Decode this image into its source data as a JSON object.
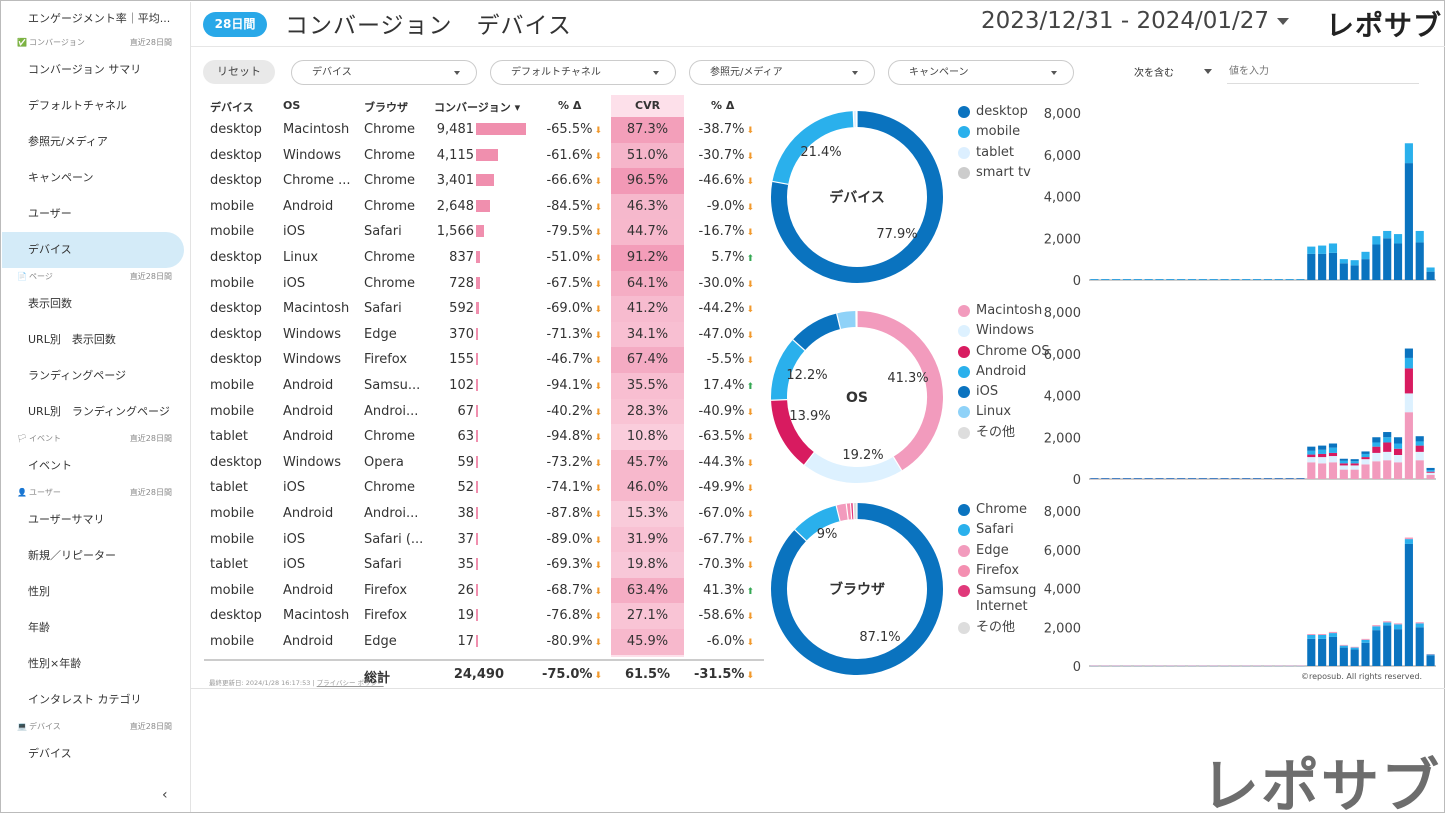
{
  "sidebar": {
    "top_item": "エンゲージメント率｜平均...",
    "sections": [
      {
        "label": "コンバージョン",
        "range": "直近28日間",
        "items": [
          "コンバージョン サマリ",
          "デフォルトチャネル",
          "参照元/メディア",
          "キャンペーン",
          "ユーザー",
          "デバイス"
        ]
      },
      {
        "label": "ページ",
        "range": "直近28日間",
        "items": [
          "表示回数",
          "URL別　表示回数",
          "ランディングページ",
          "URL別　ランディングページ"
        ]
      },
      {
        "label": "イベント",
        "range": "直近28日間",
        "items": [
          "イベント"
        ]
      },
      {
        "label": "ユーザー",
        "range": "直近28日間",
        "items": [
          "ユーザーサマリ",
          "新規／リピーター",
          "性別",
          "年齢",
          "性別×年齢",
          "インタレスト カテゴリ"
        ]
      },
      {
        "label": "デバイス",
        "range": "直近28日間",
        "items": [
          "デバイス"
        ]
      }
    ],
    "active": "デバイス",
    "collapse": "‹"
  },
  "header": {
    "period": "28日間",
    "title": "コンバージョン　デバイス",
    "date_range": "2023/12/31 - 2024/01/27",
    "logo": "レポサブ"
  },
  "filters": {
    "reset": "リセット",
    "dropdowns": [
      "デバイス",
      "デフォルトチャネル",
      "参照元/メディア",
      "キャンペーン"
    ],
    "match_mode": "次を含む",
    "value_placeholder": "値を入力"
  },
  "table": {
    "headers": {
      "device": "デバイス",
      "os": "OS",
      "browser": "ブラウザ",
      "conv": "コンバージョン ▾",
      "conv_delta": "% Δ",
      "cvr": "CVR",
      "cvr_delta": "% Δ"
    },
    "rows": [
      {
        "device": "desktop",
        "os": "Macintosh",
        "browser": "Chrome",
        "conv": "9,481",
        "conv_value": 9481,
        "delta": "-65.5%",
        "delta_dir": "down",
        "cvr": "87.3%",
        "cvr_value": 87.3,
        "cvr_delta": "-38.7%",
        "cvr_dir": "down"
      },
      {
        "device": "desktop",
        "os": "Windows",
        "browser": "Chrome",
        "conv": "4,115",
        "conv_value": 4115,
        "delta": "-61.6%",
        "delta_dir": "down",
        "cvr": "51.0%",
        "cvr_value": 51.0,
        "cvr_delta": "-30.7%",
        "cvr_dir": "down"
      },
      {
        "device": "desktop",
        "os": "Chrome ...",
        "browser": "Chrome",
        "conv": "3,401",
        "conv_value": 3401,
        "delta": "-66.6%",
        "delta_dir": "down",
        "cvr": "96.5%",
        "cvr_value": 96.5,
        "cvr_delta": "-46.6%",
        "cvr_dir": "down"
      },
      {
        "device": "mobile",
        "os": "Android",
        "browser": "Chrome",
        "conv": "2,648",
        "conv_value": 2648,
        "delta": "-84.5%",
        "delta_dir": "down",
        "cvr": "46.3%",
        "cvr_value": 46.3,
        "cvr_delta": "-9.0%",
        "cvr_dir": "down"
      },
      {
        "device": "mobile",
        "os": "iOS",
        "browser": "Safari",
        "conv": "1,566",
        "conv_value": 1566,
        "delta": "-79.5%",
        "delta_dir": "down",
        "cvr": "44.7%",
        "cvr_value": 44.7,
        "cvr_delta": "-16.7%",
        "cvr_dir": "down"
      },
      {
        "device": "desktop",
        "os": "Linux",
        "browser": "Chrome",
        "conv": "837",
        "conv_value": 837,
        "delta": "-51.0%",
        "delta_dir": "down",
        "cvr": "91.2%",
        "cvr_value": 91.2,
        "cvr_delta": "5.7%",
        "cvr_dir": "up"
      },
      {
        "device": "mobile",
        "os": "iOS",
        "browser": "Chrome",
        "conv": "728",
        "conv_value": 728,
        "delta": "-67.5%",
        "delta_dir": "down",
        "cvr": "64.1%",
        "cvr_value": 64.1,
        "cvr_delta": "-30.0%",
        "cvr_dir": "down"
      },
      {
        "device": "desktop",
        "os": "Macintosh",
        "browser": "Safari",
        "conv": "592",
        "conv_value": 592,
        "delta": "-69.0%",
        "delta_dir": "down",
        "cvr": "41.2%",
        "cvr_value": 41.2,
        "cvr_delta": "-44.2%",
        "cvr_dir": "down"
      },
      {
        "device": "desktop",
        "os": "Windows",
        "browser": "Edge",
        "conv": "370",
        "conv_value": 370,
        "delta": "-71.3%",
        "delta_dir": "down",
        "cvr": "34.1%",
        "cvr_value": 34.1,
        "cvr_delta": "-47.0%",
        "cvr_dir": "down"
      },
      {
        "device": "desktop",
        "os": "Windows",
        "browser": "Firefox",
        "conv": "155",
        "conv_value": 155,
        "delta": "-46.7%",
        "delta_dir": "down",
        "cvr": "67.4%",
        "cvr_value": 67.4,
        "cvr_delta": "-5.5%",
        "cvr_dir": "down"
      },
      {
        "device": "mobile",
        "os": "Android",
        "browser": "Samsu...",
        "conv": "102",
        "conv_value": 102,
        "delta": "-94.1%",
        "delta_dir": "down",
        "cvr": "35.5%",
        "cvr_value": 35.5,
        "cvr_delta": "17.4%",
        "cvr_dir": "up"
      },
      {
        "device": "mobile",
        "os": "Android",
        "browser": "Androi...",
        "conv": "67",
        "conv_value": 67,
        "delta": "-40.2%",
        "delta_dir": "down",
        "cvr": "28.3%",
        "cvr_value": 28.3,
        "cvr_delta": "-40.9%",
        "cvr_dir": "down"
      },
      {
        "device": "tablet",
        "os": "Android",
        "browser": "Chrome",
        "conv": "63",
        "conv_value": 63,
        "delta": "-94.8%",
        "delta_dir": "down",
        "cvr": "10.8%",
        "cvr_value": 10.8,
        "cvr_delta": "-63.5%",
        "cvr_dir": "down"
      },
      {
        "device": "desktop",
        "os": "Windows",
        "browser": "Opera",
        "conv": "59",
        "conv_value": 59,
        "delta": "-73.2%",
        "delta_dir": "down",
        "cvr": "45.7%",
        "cvr_value": 45.7,
        "cvr_delta": "-44.3%",
        "cvr_dir": "down"
      },
      {
        "device": "tablet",
        "os": "iOS",
        "browser": "Chrome",
        "conv": "52",
        "conv_value": 52,
        "delta": "-74.1%",
        "delta_dir": "down",
        "cvr": "46.0%",
        "cvr_value": 46.0,
        "cvr_delta": "-49.9%",
        "cvr_dir": "down"
      },
      {
        "device": "mobile",
        "os": "Android",
        "browser": "Androi...",
        "conv": "38",
        "conv_value": 38,
        "delta": "-87.8%",
        "delta_dir": "down",
        "cvr": "15.3%",
        "cvr_value": 15.3,
        "cvr_delta": "-67.0%",
        "cvr_dir": "down"
      },
      {
        "device": "mobile",
        "os": "iOS",
        "browser": "Safari (...",
        "conv": "37",
        "conv_value": 37,
        "delta": "-89.0%",
        "delta_dir": "down",
        "cvr": "31.9%",
        "cvr_value": 31.9,
        "cvr_delta": "-67.7%",
        "cvr_dir": "down"
      },
      {
        "device": "tablet",
        "os": "iOS",
        "browser": "Safari",
        "conv": "35",
        "conv_value": 35,
        "delta": "-69.3%",
        "delta_dir": "down",
        "cvr": "19.8%",
        "cvr_value": 19.8,
        "cvr_delta": "-70.3%",
        "cvr_dir": "down"
      },
      {
        "device": "mobile",
        "os": "Android",
        "browser": "Firefox",
        "conv": "26",
        "conv_value": 26,
        "delta": "-68.7%",
        "delta_dir": "down",
        "cvr": "63.4%",
        "cvr_value": 63.4,
        "cvr_delta": "41.3%",
        "cvr_dir": "up"
      },
      {
        "device": "desktop",
        "os": "Macintosh",
        "browser": "Firefox",
        "conv": "19",
        "conv_value": 19,
        "delta": "-76.8%",
        "delta_dir": "down",
        "cvr": "27.1%",
        "cvr_value": 27.1,
        "cvr_delta": "-58.6%",
        "cvr_dir": "down"
      },
      {
        "device": "mobile",
        "os": "Android",
        "browser": "Edge",
        "conv": "17",
        "conv_value": 17,
        "delta": "-80.9%",
        "delta_dir": "down",
        "cvr": "45.9%",
        "cvr_value": 45.9,
        "cvr_delta": "-6.0%",
        "cvr_dir": "down"
      }
    ],
    "total": {
      "label": "総計",
      "conv": "24,490",
      "delta": "-75.0%",
      "cvr": "61.5%",
      "cvr_delta": "-31.5%"
    },
    "footer": {
      "updated": "最終更新日: 2024/1/28 16:17:53",
      "privacy": "プライバシー ポリシー"
    }
  },
  "colors": {
    "accent": "#29a8e8",
    "pink": "#f08fae",
    "down": "#f29a2e",
    "up": "#34a853"
  },
  "chart_data": [
    {
      "type": "pie",
      "title": "デバイス",
      "labels": [
        "desktop",
        "mobile",
        "tablet",
        "smart tv"
      ],
      "values": [
        77.9,
        21.4,
        0.6,
        0.1
      ],
      "colors": [
        "#0a73bf",
        "#2ab0ec",
        "#dcefff",
        "#cccccc"
      ],
      "slice_labels": [
        "77.9%",
        "21.4%",
        "",
        ""
      ]
    },
    {
      "type": "pie",
      "title": "OS",
      "labels": [
        "Macintosh",
        "Windows",
        "Chrome OS",
        "Android",
        "iOS",
        "Linux",
        "その他"
      ],
      "values": [
        41.3,
        19.2,
        13.9,
        12.2,
        9.6,
        3.6,
        0.2
      ],
      "colors": [
        "#f29bbd",
        "#ddf1ff",
        "#d81b60",
        "#2ab0ec",
        "#0a73bf",
        "#8fd2f8",
        "#dddddd"
      ],
      "slice_labels": [
        "41.3%",
        "19.2%",
        "13.9%",
        "12.2%",
        "",
        "",
        ""
      ]
    },
    {
      "type": "pie",
      "title": "ブラウザ",
      "labels": [
        "Chrome",
        "Safari",
        "Edge",
        "Firefox",
        "Samsung Internet",
        "その他"
      ],
      "values": [
        87.1,
        9.0,
        1.9,
        0.8,
        0.5,
        0.7
      ],
      "colors": [
        "#0a73bf",
        "#2ab0ec",
        "#f29bbd",
        "#f48fb1",
        "#e0397a",
        "#dddddd"
      ],
      "slice_labels": [
        "87.1%",
        "9%",
        "",
        "",
        "",
        ""
      ]
    },
    {
      "type": "bar",
      "stacked": true,
      "name": "device-daily",
      "ylim": [
        0,
        8000
      ],
      "yticks": [
        "8,000",
        "6,000",
        "4,000",
        "2,000",
        "0"
      ],
      "series": [
        {
          "name": "desktop",
          "color": "#0a73bf",
          "values": [
            30,
            30,
            30,
            30,
            30,
            30,
            30,
            30,
            30,
            30,
            30,
            30,
            30,
            30,
            30,
            30,
            30,
            30,
            30,
            30,
            1250,
            1250,
            1300,
            800,
            700,
            1000,
            1700,
            2000,
            1750,
            5600,
            1800,
            400
          ]
        },
        {
          "name": "mobile",
          "color": "#2ab0ec",
          "values": [
            10,
            10,
            10,
            10,
            10,
            10,
            10,
            10,
            10,
            10,
            10,
            10,
            10,
            10,
            10,
            10,
            10,
            10,
            10,
            10,
            350,
            400,
            450,
            200,
            250,
            350,
            400,
            350,
            450,
            950,
            550,
            200
          ]
        }
      ]
    },
    {
      "type": "bar",
      "stacked": true,
      "name": "os-daily",
      "ylim": [
        0,
        8000
      ],
      "yticks": [
        "8,000",
        "6,000",
        "4,000",
        "2,000",
        "0"
      ],
      "series": [
        {
          "name": "Macintosh",
          "color": "#f29bbd",
          "values": [
            20,
            20,
            20,
            20,
            20,
            20,
            20,
            20,
            20,
            20,
            20,
            20,
            20,
            20,
            20,
            20,
            20,
            20,
            20,
            20,
            800,
            750,
            800,
            450,
            450,
            700,
            850,
            900,
            800,
            3200,
            900,
            200
          ]
        },
        {
          "name": "Windows",
          "color": "#ddf1ff",
          "values": [
            10,
            10,
            10,
            10,
            10,
            10,
            10,
            10,
            10,
            10,
            10,
            10,
            10,
            10,
            10,
            10,
            10,
            10,
            10,
            10,
            250,
            300,
            300,
            200,
            200,
            250,
            400,
            400,
            350,
            900,
            400,
            100
          ]
        },
        {
          "name": "Chrome OS",
          "color": "#d81b60",
          "values": [
            5,
            5,
            5,
            5,
            5,
            5,
            5,
            5,
            5,
            5,
            5,
            5,
            5,
            5,
            5,
            5,
            5,
            5,
            5,
            5,
            120,
            150,
            150,
            100,
            100,
            100,
            300,
            450,
            300,
            1200,
            300,
            50
          ]
        },
        {
          "name": "Android",
          "color": "#2ab0ec",
          "values": [
            3,
            3,
            3,
            3,
            3,
            3,
            3,
            3,
            3,
            3,
            3,
            3,
            3,
            3,
            3,
            3,
            3,
            3,
            3,
            3,
            180,
            200,
            250,
            120,
            100,
            150,
            200,
            250,
            250,
            500,
            200,
            80
          ]
        },
        {
          "name": "iOS",
          "color": "#0a73bf",
          "values": [
            2,
            2,
            2,
            2,
            2,
            2,
            2,
            2,
            2,
            2,
            2,
            2,
            2,
            2,
            2,
            2,
            2,
            2,
            2,
            2,
            200,
            200,
            200,
            100,
            100,
            120,
            250,
            250,
            300,
            450,
            250,
            100
          ]
        }
      ]
    },
    {
      "type": "bar",
      "stacked": true,
      "name": "browser-daily",
      "ylim": [
        0,
        8000
      ],
      "yticks": [
        "8,000",
        "6,000",
        "4,000",
        "2,000",
        "0"
      ],
      "series": [
        {
          "name": "Chrome",
          "color": "#0a73bf",
          "values": [
            20,
            20,
            20,
            20,
            20,
            20,
            20,
            20,
            20,
            20,
            20,
            20,
            20,
            20,
            20,
            20,
            20,
            20,
            20,
            20,
            1400,
            1400,
            1500,
            950,
            850,
            1200,
            1850,
            2100,
            1900,
            6300,
            2000,
            550
          ]
        },
        {
          "name": "Safari",
          "color": "#2ab0ec",
          "values": [
            8,
            8,
            8,
            8,
            8,
            8,
            8,
            8,
            8,
            8,
            8,
            8,
            8,
            8,
            8,
            8,
            8,
            8,
            8,
            8,
            200,
            200,
            200,
            100,
            100,
            150,
            200,
            150,
            250,
            250,
            200,
            50
          ]
        },
        {
          "name": "Edge",
          "color": "#f29bbd",
          "values": [
            2,
            2,
            2,
            2,
            2,
            2,
            2,
            2,
            2,
            2,
            2,
            2,
            2,
            2,
            2,
            2,
            2,
            2,
            2,
            2,
            50,
            50,
            60,
            40,
            40,
            50,
            60,
            60,
            50,
            80,
            60,
            20
          ]
        }
      ]
    }
  ],
  "copyright": "©reposub. All rights reserved.",
  "watermark": "レポサブ"
}
